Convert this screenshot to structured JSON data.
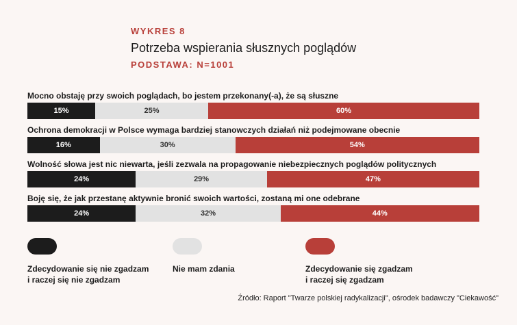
{
  "header": {
    "kicker": "WYKRES 8",
    "title": "Potrzeba wspierania słusznych poglądów",
    "base": "PODSTAWA: N=1001"
  },
  "chart_data": {
    "type": "bar",
    "orientation": "horizontal",
    "stacked": true,
    "normalized_100": true,
    "title": "Potrzeba wspierania słusznych poglądów",
    "subtitle": "PODSTAWA: N=1001",
    "categories": [
      "Mocno obstaję przy swoich poglądach, bo jestem przekonany(-a), że są słuszne",
      "Ochrona demokracji w Polsce wymaga bardziej stanowczych działań niż podejmowane obecnie",
      "Wolność słowa jest nic niewarta, jeśli zezwala na propagowanie niebezpiecznych poglądów politycznych",
      "Boję się, że jak przestanę aktywnie bronić swoich wartości, zostaną mi one odebrane"
    ],
    "series": [
      {
        "name": "Zdecydowanie się nie zgadzam\ni raczej się nie zgadzam",
        "color": "#1c1c1c",
        "values": [
          15,
          16,
          24,
          24
        ]
      },
      {
        "name": "Nie mam zdania",
        "color": "#e2e2e2",
        "values": [
          25,
          30,
          29,
          32
        ]
      },
      {
        "name": "Zdecydowanie się zgadzam\ni raczej się zgadzam",
        "color": "#b83f39",
        "values": [
          60,
          54,
          47,
          44
        ]
      }
    ],
    "value_labels": [
      [
        "15%",
        "25%",
        "60%"
      ],
      [
        "16%",
        "30%",
        "54%"
      ],
      [
        "24%",
        "29%",
        "47%"
      ],
      [
        "24%",
        "32%",
        "44%"
      ]
    ],
    "legend_position": "bottom",
    "grid": false
  },
  "source": "Źródło: Raport \"Twarze polskiej radykalizacji\", ośrodek badawczy \"Ciekawość\""
}
